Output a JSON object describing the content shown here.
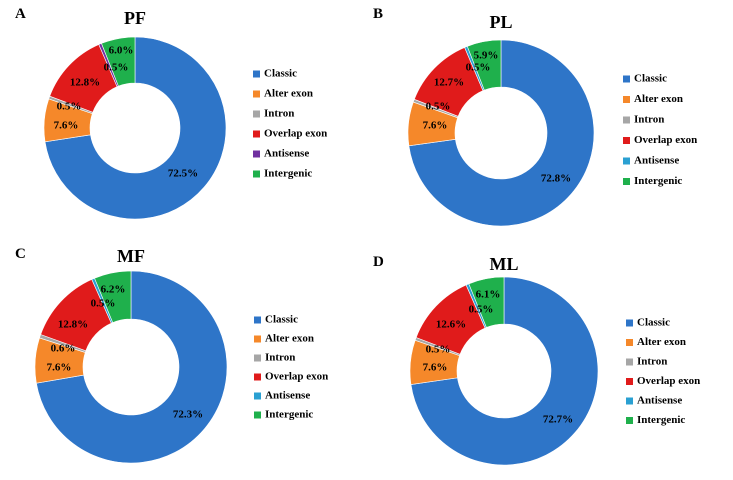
{
  "figure_categories": [
    "Classic",
    "Alter exon",
    "Intron",
    "Overlap exon",
    "Antisense",
    "Intergenic"
  ],
  "colors": {
    "Classic": "#2e75c8",
    "Alter exon": "#f5882a",
    "Intron": "#a6a6a6",
    "Overlap exon": "#e01b1b",
    "Antisense": "#7030a0",
    "Antisense_alt": "#2aa0d2",
    "Intergenic": "#1fb04c"
  },
  "chart_data": [
    {
      "type": "pie",
      "panel": "A",
      "title": "PF",
      "categories": [
        "Classic",
        "Alter exon",
        "Intron",
        "Overlap exon",
        "Antisense",
        "Intergenic"
      ],
      "values": [
        72.5,
        7.6,
        0.5,
        12.8,
        0.5,
        6.0
      ],
      "labels": [
        "72.5%",
        "7.6%",
        "0.5%",
        "12.8%",
        "0.5%",
        "6.0%"
      ],
      "legend": [
        "Classic",
        "Alter exon",
        "Intron",
        "Overlap exon",
        "Antisense",
        "Intergenic"
      ],
      "legend_placement": "right",
      "antisense_color": "#7030a0"
    },
    {
      "type": "pie",
      "panel": "B",
      "title": "PL",
      "categories": [
        "Classic",
        "Alter exon",
        "Intron",
        "Overlap exon",
        "Antisense",
        "Intergenic"
      ],
      "values": [
        72.8,
        7.6,
        0.5,
        12.7,
        0.5,
        5.9
      ],
      "labels": [
        "72.8%",
        "7.6%",
        "0.5%",
        "12.7%",
        "0.5%",
        "5.9%"
      ],
      "legend": [
        "Classic",
        "Alter exon",
        "Intron",
        "Overlap exon",
        "Antisense",
        "Intergenic"
      ],
      "legend_placement": "right",
      "antisense_color": "#2aa0d2"
    },
    {
      "type": "pie",
      "panel": "C",
      "title": "MF",
      "categories": [
        "Classic",
        "Alter exon",
        "Intron",
        "Overlap exon",
        "Antisense",
        "Intergenic"
      ],
      "values": [
        72.3,
        7.6,
        0.6,
        12.8,
        0.5,
        6.2
      ],
      "labels": [
        "72.3%",
        "7.6%",
        "0.6%",
        "12.8%",
        "0.5%",
        "6.2%"
      ],
      "legend": [
        "Classic",
        "Alter exon",
        "Intron",
        "Overlap exon",
        "Antisense",
        "Intergenic"
      ],
      "legend_placement": "right",
      "antisense_color": "#2aa0d2"
    },
    {
      "type": "pie",
      "panel": "D",
      "title": "ML",
      "categories": [
        "Classic",
        "Alter exon",
        "Intron",
        "Overlap exon",
        "Antisense",
        "Intergenic"
      ],
      "values": [
        72.7,
        7.6,
        0.5,
        12.6,
        0.5,
        6.1
      ],
      "labels": [
        "72.7%",
        "7.6%",
        "0.5%",
        "12.6%",
        "0.5%",
        "6.1%"
      ],
      "legend": [
        "Classic",
        "Alter exon",
        "Intron",
        "Overlap exon",
        "Antisense",
        "Intergenic"
      ],
      "legend_placement": "right",
      "antisense_color": "#2aa0d2"
    }
  ]
}
